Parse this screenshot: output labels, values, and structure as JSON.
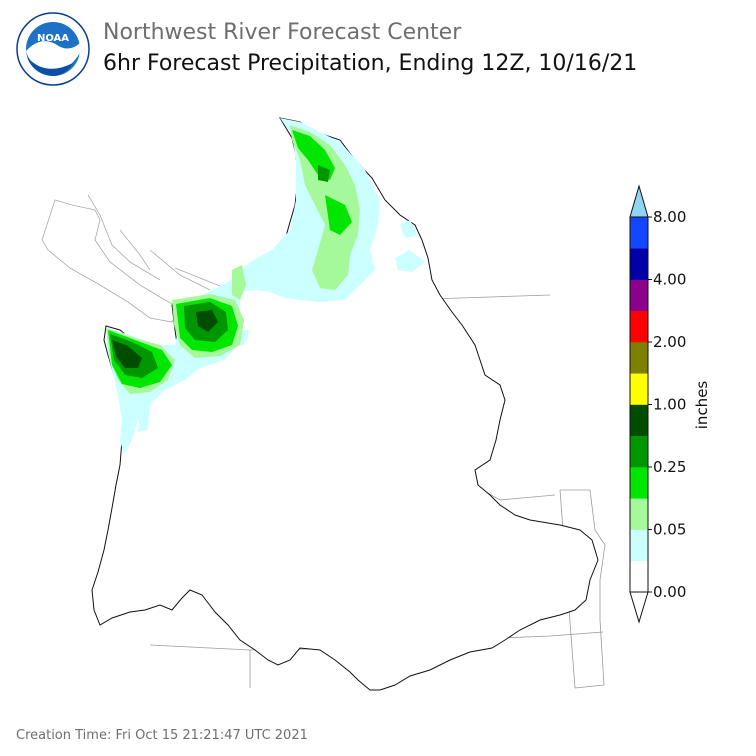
{
  "header": {
    "org": "Northwest River Forecast Center",
    "title": "6hr Forecast Precipitation, Ending 12Z, 10/16/21"
  },
  "logo": {
    "ring_text_top": "NATIONAL OCEANIC AND ATMOSPHERIC ADMINISTRATION",
    "ring_text_bottom": "U.S. DEPARTMENT OF COMMERCE",
    "center": "NOAA"
  },
  "legend": {
    "unit_label": "inches",
    "tick_labels": [
      "8.00",
      "4.00",
      "2.00",
      "1.00",
      "0.25",
      "0.05",
      "0.00"
    ],
    "colors_bottom_to_top": [
      "#ffffff",
      "#ccffff",
      "#a6f99a",
      "#00e600",
      "#009600",
      "#004d00",
      "#ffff00",
      "#7f7f00",
      "#ff0000",
      "#8c008c",
      "#0000a6",
      "#1446ff"
    ],
    "overflow_color": "#8fd5f5",
    "underflow_color": "#ffffff"
  },
  "footer": {
    "creation_time": "Creation Time: Fri Oct 15 21:21:47 UTC 2021"
  }
}
